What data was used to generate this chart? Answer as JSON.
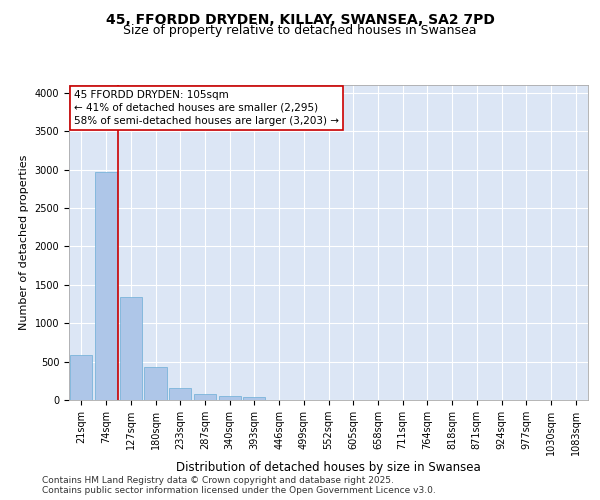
{
  "title1": "45, FFORDD DRYDEN, KILLAY, SWANSEA, SA2 7PD",
  "title2": "Size of property relative to detached houses in Swansea",
  "xlabel": "Distribution of detached houses by size in Swansea",
  "ylabel": "Number of detached properties",
  "categories": [
    "21sqm",
    "74sqm",
    "127sqm",
    "180sqm",
    "233sqm",
    "287sqm",
    "340sqm",
    "393sqm",
    "446sqm",
    "499sqm",
    "552sqm",
    "605sqm",
    "658sqm",
    "711sqm",
    "764sqm",
    "818sqm",
    "871sqm",
    "924sqm",
    "977sqm",
    "1030sqm",
    "1083sqm"
  ],
  "values": [
    580,
    2970,
    1340,
    430,
    155,
    75,
    50,
    35,
    0,
    0,
    0,
    0,
    0,
    0,
    0,
    0,
    0,
    0,
    0,
    0,
    0
  ],
  "bar_color": "#aec6e8",
  "bar_edgecolor": "#6baed6",
  "vline_x": 1.5,
  "vline_color": "#cc0000",
  "annotation_text": "45 FFORDD DRYDEN: 105sqm\n← 41% of detached houses are smaller (2,295)\n58% of semi-detached houses are larger (3,203) →",
  "annotation_box_edgecolor": "#cc0000",
  "annotation_box_facecolor": "white",
  "ylim": [
    0,
    4100
  ],
  "yticks": [
    0,
    500,
    1000,
    1500,
    2000,
    2500,
    3000,
    3500,
    4000
  ],
  "background_color": "#dce6f5",
  "footer_text": "Contains HM Land Registry data © Crown copyright and database right 2025.\nContains public sector information licensed under the Open Government Licence v3.0.",
  "title1_fontsize": 10,
  "title2_fontsize": 9,
  "xlabel_fontsize": 8.5,
  "ylabel_fontsize": 8,
  "tick_fontsize": 7,
  "annotation_fontsize": 7.5,
  "footer_fontsize": 6.5
}
